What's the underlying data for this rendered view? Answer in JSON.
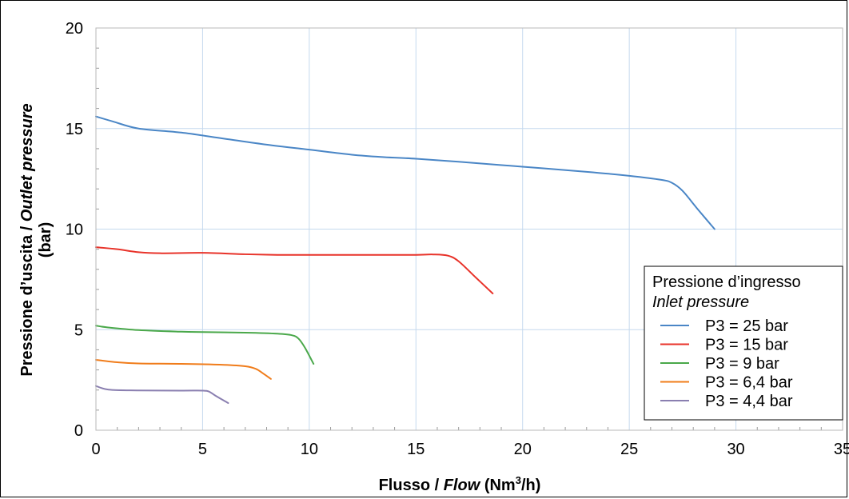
{
  "chart_data": {
    "type": "line",
    "title": "",
    "xlabel": {
      "parts": [
        "Flusso / ",
        "Flow",
        " (Nm",
        "3",
        "/h)"
      ]
    },
    "ylabel": {
      "line1_parts": [
        "Pressione d’uscita / ",
        "Outlet pressure"
      ],
      "line2": "(bar)"
    },
    "xlim": [
      0,
      35
    ],
    "ylim": [
      0,
      20
    ],
    "x_ticks": [
      "0",
      "5",
      "10",
      "15",
      "20",
      "25",
      "30",
      "35"
    ],
    "y_ticks": [
      "0",
      "5",
      "10",
      "15",
      "20"
    ],
    "x_tick_values": [
      0,
      5,
      10,
      15,
      20,
      25,
      30,
      35
    ],
    "y_tick_values": [
      0,
      5,
      10,
      15,
      20
    ],
    "grid": true,
    "legend": {
      "title_line1": "Pressione d’ingresso",
      "title_line2": "Inlet pressure",
      "placement": "bottom-right"
    },
    "series": [
      {
        "name": "P3 = 25 bar",
        "color": "#4a86c6",
        "points": [
          [
            0,
            15.6
          ],
          [
            0.8,
            15.35
          ],
          [
            2,
            15.0
          ],
          [
            4,
            14.8
          ],
          [
            6,
            14.5
          ],
          [
            8,
            14.2
          ],
          [
            10,
            13.95
          ],
          [
            12,
            13.7
          ],
          [
            13.5,
            13.58
          ],
          [
            15,
            13.5
          ],
          [
            17,
            13.35
          ],
          [
            20,
            13.1
          ],
          [
            23,
            12.85
          ],
          [
            25,
            12.65
          ],
          [
            26.5,
            12.45
          ],
          [
            27,
            12.3
          ],
          [
            27.5,
            11.9
          ],
          [
            28.2,
            11.0
          ],
          [
            29,
            10.0
          ]
        ]
      },
      {
        "name": "P3 = 15 bar",
        "color": "#e8332a",
        "points": [
          [
            0,
            9.1
          ],
          [
            1,
            9.0
          ],
          [
            2,
            8.85
          ],
          [
            3,
            8.8
          ],
          [
            5,
            8.82
          ],
          [
            7,
            8.75
          ],
          [
            8.5,
            8.72
          ],
          [
            10,
            8.72
          ],
          [
            12,
            8.72
          ],
          [
            15,
            8.72
          ],
          [
            15.8,
            8.74
          ],
          [
            16.5,
            8.68
          ],
          [
            17,
            8.4
          ],
          [
            17.8,
            7.6
          ],
          [
            18.6,
            6.8
          ]
        ]
      },
      {
        "name": "P3 = 9 bar",
        "color": "#4aa84a",
        "points": [
          [
            0,
            5.2
          ],
          [
            0.5,
            5.12
          ],
          [
            2,
            4.98
          ],
          [
            4,
            4.9
          ],
          [
            5,
            4.88
          ],
          [
            7,
            4.85
          ],
          [
            8.5,
            4.8
          ],
          [
            9.2,
            4.72
          ],
          [
            9.5,
            4.55
          ],
          [
            9.8,
            4.1
          ],
          [
            10.2,
            3.3
          ]
        ]
      },
      {
        "name": "P3 = 6,4 bar",
        "color": "#f07c1a",
        "points": [
          [
            0,
            3.5
          ],
          [
            1,
            3.38
          ],
          [
            2,
            3.32
          ],
          [
            4,
            3.3
          ],
          [
            6,
            3.25
          ],
          [
            7,
            3.18
          ],
          [
            7.5,
            3.05
          ],
          [
            7.8,
            2.85
          ],
          [
            8.2,
            2.55
          ]
        ]
      },
      {
        "name": "P3 = 4,4 bar",
        "color": "#8a7fb0",
        "points": [
          [
            0,
            2.2
          ],
          [
            0.6,
            2.02
          ],
          [
            2,
            1.98
          ],
          [
            4,
            1.97
          ],
          [
            5,
            1.97
          ],
          [
            5.3,
            1.92
          ],
          [
            5.6,
            1.72
          ],
          [
            6.2,
            1.35
          ]
        ]
      }
    ]
  }
}
